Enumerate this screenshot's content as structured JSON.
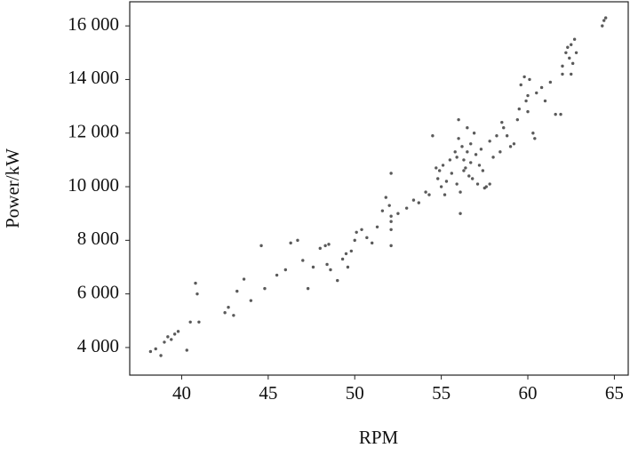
{
  "chart_data": {
    "type": "scatter",
    "xlabel": "RPM",
    "ylabel": "Power/kW",
    "color": "#5a5a5a",
    "xlim": [
      37.0,
      65.8
    ],
    "ylim": [
      2970,
      16900
    ],
    "xticks": [
      40,
      45,
      50,
      55,
      60,
      65
    ],
    "yticks": [
      {
        "value": 4000,
        "label": "4 000"
      },
      {
        "value": 6000,
        "label": "6 000"
      },
      {
        "value": 8000,
        "label": "8 000"
      },
      {
        "value": 10000,
        "label": "10 000"
      },
      {
        "value": 12000,
        "label": "12 000"
      },
      {
        "value": 14000,
        "label": "14 000"
      },
      {
        "value": 16000,
        "label": "16 000"
      }
    ],
    "x": [
      38.2,
      38.5,
      38.8,
      39,
      39.2,
      39.4,
      39.6,
      39.8,
      40.3,
      40.5,
      40.8,
      40.9,
      41,
      42.5,
      42.7,
      43,
      43.2,
      43.6,
      44,
      44.6,
      44.8,
      45.5,
      46,
      46.3,
      46.7,
      47,
      47.3,
      47.6,
      48,
      48.3,
      48.4,
      48.6,
      48.5,
      49,
      49.3,
      49.5,
      49.6,
      49.8,
      50,
      50.1,
      50.4,
      50.7,
      51,
      51.3,
      51.6,
      51.8,
      52.1,
      52,
      52.1,
      52.1,
      52.1,
      52.1,
      52.5,
      53,
      53.4,
      53.7,
      54.1,
      54.3,
      54.5,
      54.8,
      54.9,
      55,
      55.1,
      55.3,
      55.5,
      55.6,
      55.8,
      55.9,
      56,
      56,
      56.1,
      56.1,
      56.2,
      56.3,
      56.4,
      56.5,
      56.6,
      56.7,
      56.8,
      56.9,
      57,
      57.1,
      57.2,
      57.3,
      57.4,
      57.6,
      57.8,
      58,
      58.2,
      58.4,
      58.6,
      58.8,
      59,
      59.2,
      59.4,
      59.5,
      59.6,
      59.8,
      59.9,
      60,
      60,
      60.1,
      60.3,
      60.4,
      60.5,
      60.8,
      61,
      61.3,
      61.6,
      61.9,
      62,
      62.2,
      62.4,
      62.5,
      62.6,
      62.7,
      62.8,
      62.5,
      64.3,
      64.4,
      64.5,
      62.3,
      62.0,
      56.3,
      56.5,
      55.9,
      56.7,
      57.5,
      57.8,
      55.2,
      54.7,
      58.5
    ],
    "values": [
      3850,
      3950,
      3700,
      4200,
      4400,
      4300,
      4500,
      4600,
      3900,
      4950,
      6400,
      6000,
      4950,
      5300,
      5500,
      5200,
      6100,
      6550,
      5750,
      7800,
      6200,
      6700,
      6900,
      7900,
      8000,
      7250,
      6200,
      7000,
      7700,
      7800,
      7100,
      6900,
      7850,
      6500,
      7300,
      7500,
      7000,
      7600,
      8000,
      8300,
      8400,
      8100,
      7900,
      8500,
      9100,
      9600,
      10500,
      9300,
      8900,
      8700,
      8400,
      7800,
      9000,
      9200,
      9500,
      9400,
      9800,
      9700,
      11900,
      10300,
      10600,
      10000,
      10800,
      10200,
      11000,
      10500,
      11300,
      10100,
      11800,
      12500,
      9800,
      9000,
      11500,
      11000,
      10700,
      12200,
      10400,
      11600,
      10300,
      12000,
      11200,
      10100,
      10800,
      11400,
      10600,
      10000,
      11700,
      11100,
      11900,
      11300,
      12200,
      11900,
      11500,
      11600,
      12500,
      12900,
      13800,
      14100,
      13200,
      13400,
      12800,
      14000,
      12000,
      11800,
      13500,
      13700,
      13200,
      13900,
      12700,
      12700,
      14500,
      15000,
      14800,
      15300,
      14600,
      15500,
      15000,
      14200,
      16000,
      16200,
      16300,
      15200,
      14200,
      10600,
      11300,
      11100,
      10900,
      9950,
      10100,
      9700,
      10700,
      12400
    ]
  }
}
